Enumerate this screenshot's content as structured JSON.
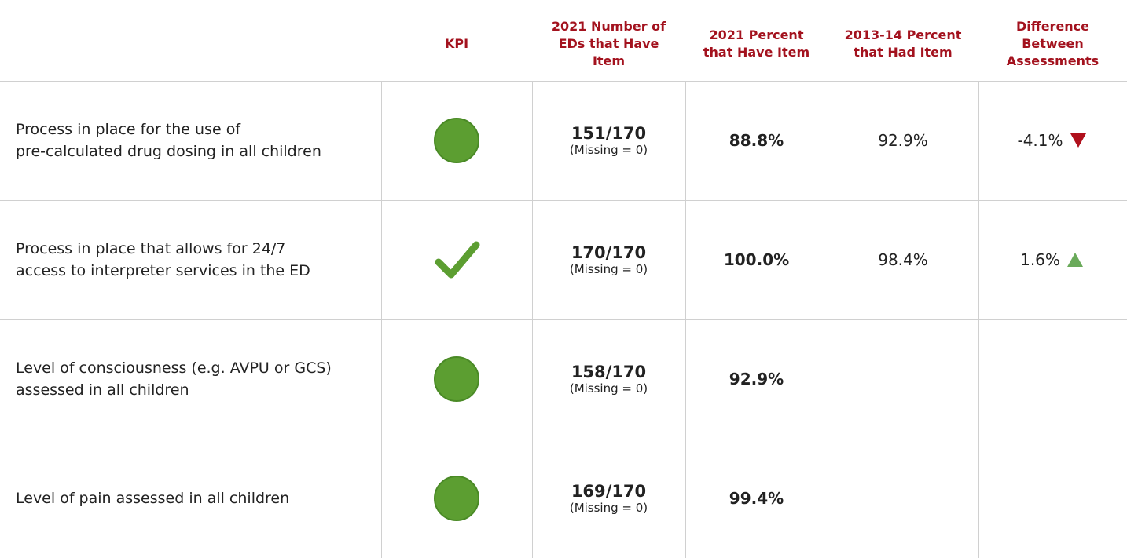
{
  "header": {
    "columns": [
      "KPI",
      "2021 Number of\nEDs that Have\nItem",
      "2021 Percent\nthat Have Item",
      "2013-14 Percent\nthat Had Item",
      "Difference\nBetween\nAssessments"
    ]
  },
  "rows": [
    {
      "item": "Process in place for the use of\npre-calculated drug dosing in all children",
      "kpi": "circle",
      "count": "151/170",
      "missing": "(Missing = 0)",
      "percent_2021": "88.8%",
      "percent_2013_14": "92.9%",
      "difference": "-4.1%",
      "trend": "down"
    },
    {
      "item": "Process in place that allows for 24/7\naccess to interpreter services in the ED",
      "kpi": "check",
      "count": "170/170",
      "missing": "(Missing = 0)",
      "percent_2021": "100.0%",
      "percent_2013_14": "98.4%",
      "difference": "1.6%",
      "trend": "up"
    },
    {
      "item": "Level of consciousness (e.g. AVPU or GCS)\nassessed in all children",
      "kpi": "circle",
      "count": "158/170",
      "missing": "(Missing = 0)",
      "percent_2021": "92.9%",
      "percent_2013_14": null,
      "difference": null,
      "trend": null
    },
    {
      "item": "Level of pain assessed in all children",
      "kpi": "circle",
      "count": "169/170",
      "missing": "(Missing = 0)",
      "percent_2021": "99.4%",
      "percent_2013_14": null,
      "difference": null,
      "trend": null
    }
  ]
}
